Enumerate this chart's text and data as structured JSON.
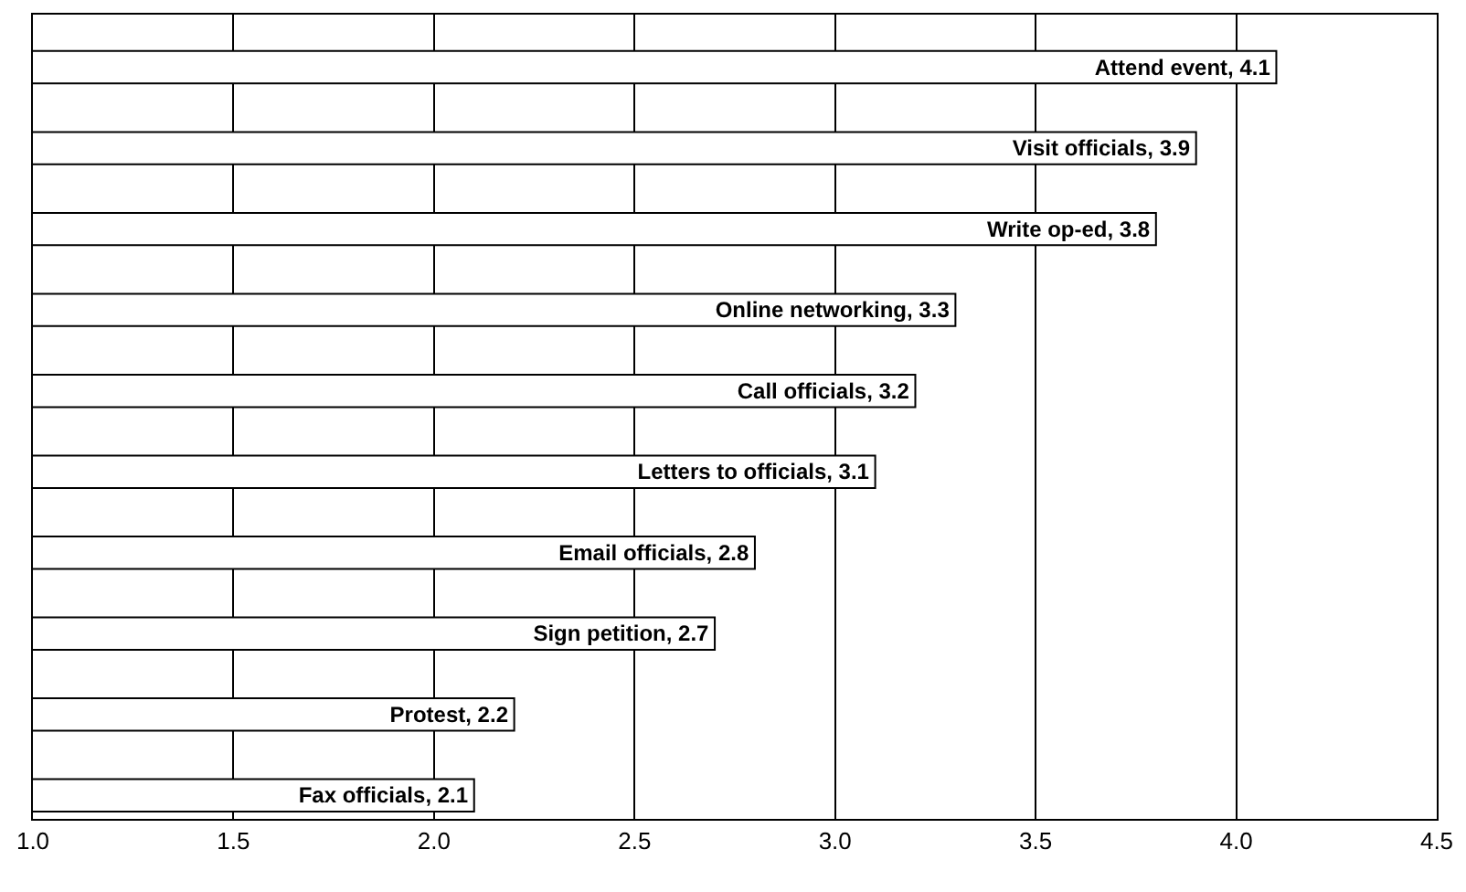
{
  "chart_data": {
    "type": "bar",
    "orientation": "horizontal",
    "categories": [
      "Attend event, 4.1",
      "Visit officials, 3.9",
      "Write op-ed, 3.8",
      "Online networking, 3.3",
      "Call officials, 3.2",
      "Letters to officials, 3.1",
      "Email officials, 2.8",
      "Sign petition, 2.7",
      "Protest, 2.2",
      "Fax officials, 2.1"
    ],
    "values": [
      4.1,
      3.9,
      3.8,
      3.3,
      3.2,
      3.1,
      2.8,
      2.7,
      2.2,
      2.1
    ],
    "color": "#ffffff",
    "xlim": [
      1.0,
      4.5
    ],
    "xticks": [
      {
        "value": 1.0,
        "label": "1.0"
      },
      {
        "value": 1.5,
        "label": "1.5"
      },
      {
        "value": 2.0,
        "label": "2.0"
      },
      {
        "value": 2.5,
        "label": "2.5"
      },
      {
        "value": 3.0,
        "label": "3.0"
      },
      {
        "value": 3.5,
        "label": "3.5"
      },
      {
        "value": 4.0,
        "label": "4.0"
      },
      {
        "value": 4.5,
        "label": "4.5"
      }
    ],
    "grid": "x",
    "tick_labels": "x",
    "legend": false
  }
}
